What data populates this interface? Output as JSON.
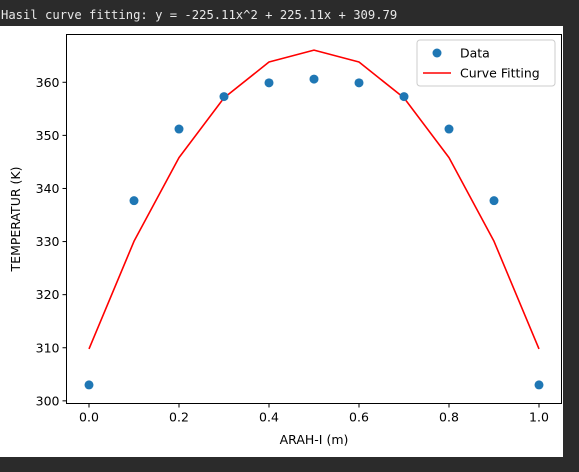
{
  "console": {
    "output_line": "Hasil curve fitting: y = -225.11x^2 + 225.11x + 309.79"
  },
  "chart_data": {
    "type": "scatter",
    "title": "",
    "xlabel": "ARAH-I (m)",
    "ylabel": "TEMPERATUR (K)",
    "xlim": [
      -0.05,
      1.05
    ],
    "ylim": [
      299.5,
      369.0
    ],
    "xticks": [
      "0.0",
      "0.2",
      "0.4",
      "0.6",
      "0.8",
      "1.0"
    ],
    "xtick_values": [
      0.0,
      0.2,
      0.4,
      0.6,
      0.8,
      1.0
    ],
    "yticks": [
      "300",
      "310",
      "320",
      "330",
      "340",
      "350",
      "360"
    ],
    "ytick_values": [
      300,
      310,
      320,
      330,
      340,
      350,
      360
    ],
    "grid": false,
    "legend_position": "top-right",
    "series": [
      {
        "name": "Data",
        "kind": "scatter",
        "color": "#1f77b4",
        "x": [
          0.0,
          0.1,
          0.2,
          0.3,
          0.4,
          0.5,
          0.6,
          0.7,
          0.8,
          0.9,
          1.0
        ],
        "y": [
          303.0,
          337.7,
          351.2,
          357.3,
          359.9,
          360.6,
          359.9,
          357.3,
          351.2,
          337.7,
          303.0
        ]
      },
      {
        "name": "Curve Fitting",
        "kind": "line",
        "color": "#ff0000",
        "x": [
          0.0,
          0.1,
          0.2,
          0.3,
          0.4,
          0.5,
          0.6,
          0.7,
          0.8,
          0.9,
          1.0
        ],
        "y": [
          309.79,
          330.05,
          345.81,
          357.06,
          363.82,
          366.07,
          363.82,
          357.06,
          345.81,
          330.05,
          309.79
        ]
      }
    ]
  }
}
